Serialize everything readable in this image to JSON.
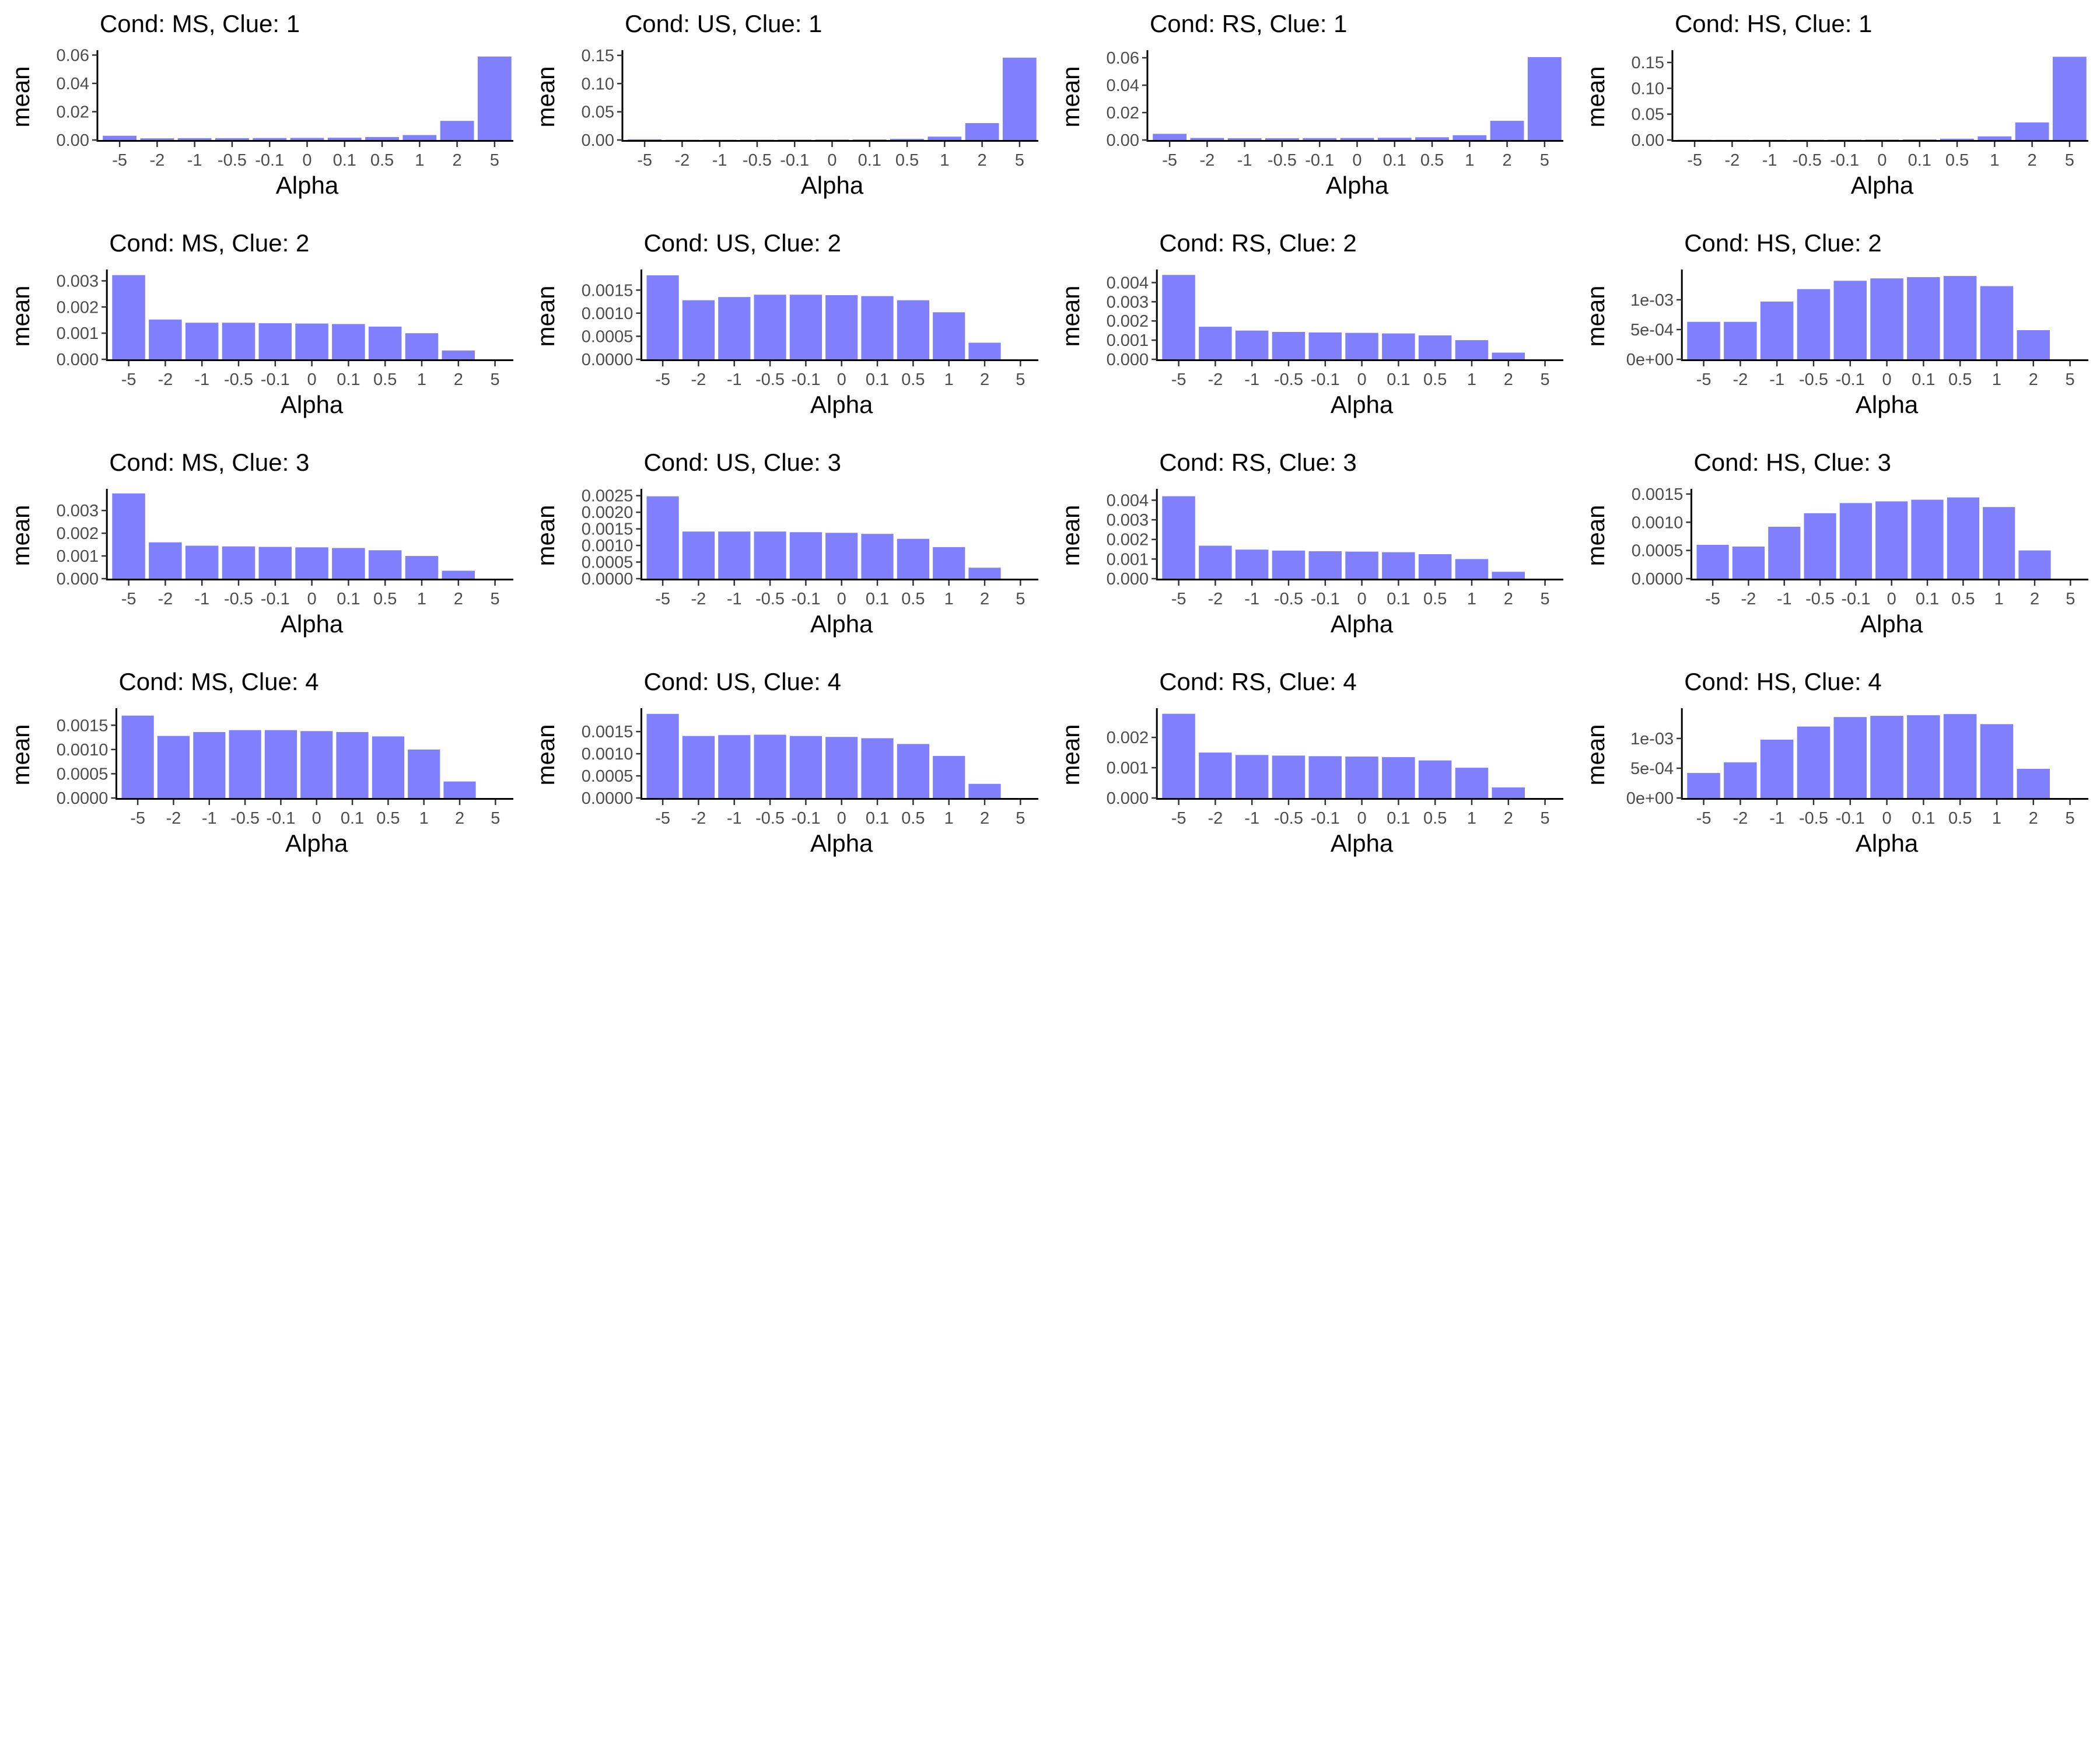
{
  "xlabel": "Alpha",
  "ylabel": "mean",
  "bar_color": "#8080ff",
  "chart_data": [
    {
      "type": "bar",
      "title": "Cond: MS, Clue: 1",
      "categories": [
        "-5",
        "-2",
        "-1",
        "-0.5",
        "-0.1",
        "0",
        "0.1",
        "0.5",
        "1",
        "2",
        "5"
      ],
      "values": [
        0.003,
        0.0012,
        0.0013,
        0.0013,
        0.0014,
        0.0015,
        0.0016,
        0.0021,
        0.0035,
        0.0135,
        0.059
      ],
      "ylim": [
        0,
        0.061
      ],
      "yticks": [
        0,
        0.02,
        0.04,
        0.06
      ],
      "yticklabels": [
        "0.00",
        "0.02",
        "0.04",
        "0.06"
      ]
    },
    {
      "type": "bar",
      "title": "Cond: US, Clue: 1",
      "categories": [
        "-5",
        "-2",
        "-1",
        "-0.5",
        "-0.1",
        "0",
        "0.1",
        "0.5",
        "1",
        "2",
        "5"
      ],
      "values": [
        0.0012,
        0.0004,
        0.0004,
        0.0005,
        0.0006,
        0.0008,
        0.001,
        0.002,
        0.006,
        0.03,
        0.146
      ],
      "ylim": [
        0,
        0.153
      ],
      "yticks": [
        0,
        0.05,
        0.1,
        0.15
      ],
      "yticklabels": [
        "0.00",
        "0.05",
        "0.10",
        "0.15"
      ]
    },
    {
      "type": "bar",
      "title": "Cond: RS, Clue: 1",
      "categories": [
        "-5",
        "-2",
        "-1",
        "-0.5",
        "-0.1",
        "0",
        "0.1",
        "0.5",
        "1",
        "2",
        "5"
      ],
      "values": [
        0.0045,
        0.0015,
        0.0013,
        0.0013,
        0.0014,
        0.0015,
        0.0016,
        0.002,
        0.0035,
        0.014,
        0.0605
      ],
      "ylim": [
        0,
        0.063
      ],
      "yticks": [
        0,
        0.02,
        0.04,
        0.06
      ],
      "yticklabels": [
        "0.00",
        "0.02",
        "0.04",
        "0.06"
      ]
    },
    {
      "type": "bar",
      "title": "Cond: HS, Clue: 1",
      "categories": [
        "-5",
        "-2",
        "-1",
        "-0.5",
        "-0.1",
        "0",
        "0.1",
        "0.5",
        "1",
        "2",
        "5"
      ],
      "values": [
        0.0004,
        0.0003,
        0.0004,
        0.0005,
        0.0006,
        0.0008,
        0.0012,
        0.0025,
        0.007,
        0.034,
        0.161
      ],
      "ylim": [
        0,
        0.167
      ],
      "yticks": [
        0,
        0.05,
        0.1,
        0.15
      ],
      "yticklabels": [
        "0.00",
        "0.05",
        "0.10",
        "0.15"
      ]
    },
    {
      "type": "bar",
      "title": "Cond: MS, Clue: 2",
      "categories": [
        "-5",
        "-2",
        "-1",
        "-0.5",
        "-0.1",
        "0",
        "0.1",
        "0.5",
        "1",
        "2",
        "5"
      ],
      "values": [
        0.00322,
        0.00152,
        0.0014,
        0.0014,
        0.00138,
        0.00137,
        0.00135,
        0.00125,
        0.001,
        0.00034,
        0.0
      ],
      "ylim": [
        0,
        0.0033
      ],
      "yticks": [
        0,
        0.001,
        0.002,
        0.003
      ],
      "yticklabels": [
        "0.000",
        "0.001",
        "0.002",
        "0.003"
      ]
    },
    {
      "type": "bar",
      "title": "Cond: US, Clue: 2",
      "categories": [
        "-5",
        "-2",
        "-1",
        "-0.5",
        "-0.1",
        "0",
        "0.1",
        "0.5",
        "1",
        "2",
        "5"
      ],
      "values": [
        0.00182,
        0.00128,
        0.00135,
        0.0014,
        0.0014,
        0.00139,
        0.00137,
        0.00128,
        0.00102,
        0.00036,
        0.0
      ],
      "ylim": [
        0,
        0.00187
      ],
      "yticks": [
        0,
        0.0005,
        0.001,
        0.0015
      ],
      "yticklabels": [
        "0.0000",
        "0.0005",
        "0.0010",
        "0.0015"
      ]
    },
    {
      "type": "bar",
      "title": "Cond: RS, Clue: 2",
      "categories": [
        "-5",
        "-2",
        "-1",
        "-0.5",
        "-0.1",
        "0",
        "0.1",
        "0.5",
        "1",
        "2",
        "5"
      ],
      "values": [
        0.0044,
        0.0017,
        0.0015,
        0.00143,
        0.0014,
        0.00138,
        0.00135,
        0.00125,
        0.001,
        0.00035,
        0.0
      ],
      "ylim": [
        0,
        0.0045
      ],
      "yticks": [
        0,
        0.001,
        0.002,
        0.003,
        0.004
      ],
      "yticklabels": [
        "0.000",
        "0.001",
        "0.002",
        "0.003",
        "0.004"
      ]
    },
    {
      "type": "bar",
      "title": "Cond: HS, Clue: 2",
      "categories": [
        "-5",
        "-2",
        "-1",
        "-0.5",
        "-0.1",
        "0",
        "0.1",
        "0.5",
        "1",
        "2",
        "5"
      ],
      "values": [
        0.00063,
        0.00063,
        0.00097,
        0.00118,
        0.00132,
        0.00136,
        0.00138,
        0.0014,
        0.00123,
        0.00049,
        0.0
      ],
      "ylim": [
        0,
        0.00145
      ],
      "yticks": [
        0,
        0.0005,
        0.001
      ],
      "yticklabels": [
        "0e+00",
        "5e-04",
        "1e-03"
      ]
    },
    {
      "type": "bar",
      "title": "Cond: MS, Clue: 3",
      "categories": [
        "-5",
        "-2",
        "-1",
        "-0.5",
        "-0.1",
        "0",
        "0.1",
        "0.5",
        "1",
        "2",
        "5"
      ],
      "values": [
        0.00375,
        0.0016,
        0.00145,
        0.00142,
        0.0014,
        0.00138,
        0.00135,
        0.00125,
        0.001,
        0.00035,
        0.0
      ],
      "ylim": [
        0,
        0.0038
      ],
      "yticks": [
        0,
        0.001,
        0.002,
        0.003
      ],
      "yticklabels": [
        "0.000",
        "0.001",
        "0.002",
        "0.003"
      ]
    },
    {
      "type": "bar",
      "title": "Cond: US, Clue: 3",
      "categories": [
        "-5",
        "-2",
        "-1",
        "-0.5",
        "-0.1",
        "0",
        "0.1",
        "0.5",
        "1",
        "2",
        "5"
      ],
      "values": [
        0.00248,
        0.00142,
        0.00142,
        0.00142,
        0.0014,
        0.00138,
        0.00135,
        0.0012,
        0.00095,
        0.00033,
        0.0
      ],
      "ylim": [
        0,
        0.0026
      ],
      "yticks": [
        0,
        0.0005,
        0.001,
        0.0015,
        0.002,
        0.0025
      ],
      "yticklabels": [
        "0.0000",
        "0.0005",
        "0.0010",
        "0.0015",
        "0.0020",
        "0.0025"
      ]
    },
    {
      "type": "bar",
      "title": "Cond: RS, Clue: 3",
      "categories": [
        "-5",
        "-2",
        "-1",
        "-0.5",
        "-0.1",
        "0",
        "0.1",
        "0.5",
        "1",
        "2",
        "5"
      ],
      "values": [
        0.0042,
        0.00168,
        0.00148,
        0.00143,
        0.0014,
        0.00138,
        0.00135,
        0.00125,
        0.001,
        0.00035,
        0.0
      ],
      "ylim": [
        0,
        0.0044
      ],
      "yticks": [
        0,
        0.001,
        0.002,
        0.003,
        0.004
      ],
      "yticklabels": [
        "0.000",
        "0.001",
        "0.002",
        "0.003",
        "0.004"
      ]
    },
    {
      "type": "bar",
      "title": "Cond: HS, Clue: 3",
      "categories": [
        "-5",
        "-2",
        "-1",
        "-0.5",
        "-0.1",
        "0",
        "0.1",
        "0.5",
        "1",
        "2",
        "5"
      ],
      "values": [
        0.0006,
        0.00057,
        0.00092,
        0.00116,
        0.00134,
        0.00137,
        0.0014,
        0.00144,
        0.00127,
        0.0005,
        0.0
      ],
      "ylim": [
        0,
        0.00153
      ],
      "yticks": [
        0,
        0.0005,
        0.001,
        0.0015
      ],
      "yticklabels": [
        "0.0000",
        "0.0005",
        "0.0010",
        "0.0015"
      ]
    },
    {
      "type": "bar",
      "title": "Cond: MS, Clue: 4",
      "categories": [
        "-5",
        "-2",
        "-1",
        "-0.5",
        "-0.1",
        "0",
        "0.1",
        "0.5",
        "1",
        "2",
        "5"
      ],
      "values": [
        0.0017,
        0.00128,
        0.00136,
        0.0014,
        0.0014,
        0.00138,
        0.00136,
        0.00127,
        0.001,
        0.00034,
        0.0
      ],
      "ylim": [
        0,
        0.00178
      ],
      "yticks": [
        0,
        0.0005,
        0.001,
        0.0015
      ],
      "yticklabels": [
        "0.0000",
        "0.0005",
        "0.0010",
        "0.0015"
      ]
    },
    {
      "type": "bar",
      "title": "Cond: US, Clue: 4",
      "categories": [
        "-5",
        "-2",
        "-1",
        "-0.5",
        "-0.1",
        "0",
        "0.1",
        "0.5",
        "1",
        "2",
        "5"
      ],
      "values": [
        0.0019,
        0.0014,
        0.00142,
        0.00143,
        0.0014,
        0.00138,
        0.00135,
        0.00122,
        0.00095,
        0.00032,
        0.0
      ],
      "ylim": [
        0,
        0.00195
      ],
      "yticks": [
        0,
        0.0005,
        0.001,
        0.0015
      ],
      "yticklabels": [
        "0.0000",
        "0.0005",
        "0.0010",
        "0.0015"
      ]
    },
    {
      "type": "bar",
      "title": "Cond: RS, Clue: 4",
      "categories": [
        "-5",
        "-2",
        "-1",
        "-0.5",
        "-0.1",
        "0",
        "0.1",
        "0.5",
        "1",
        "2",
        "5"
      ],
      "values": [
        0.00278,
        0.0015,
        0.00142,
        0.0014,
        0.00138,
        0.00137,
        0.00135,
        0.00124,
        0.001,
        0.00035,
        0.0
      ],
      "ylim": [
        0,
        0.00285
      ],
      "yticks": [
        0,
        0.001,
        0.002
      ],
      "yticklabels": [
        "0.000",
        "0.001",
        "0.002"
      ]
    },
    {
      "type": "bar",
      "title": "Cond: HS, Clue: 4",
      "categories": [
        "-5",
        "-2",
        "-1",
        "-0.5",
        "-0.1",
        "0",
        "0.1",
        "0.5",
        "1",
        "2",
        "5"
      ],
      "values": [
        0.00042,
        0.0006,
        0.00098,
        0.0012,
        0.00136,
        0.00138,
        0.00139,
        0.00141,
        0.00124,
        0.00049,
        0.0
      ],
      "ylim": [
        0,
        0.00145
      ],
      "yticks": [
        0,
        0.0005,
        0.001
      ],
      "yticklabels": [
        "0e+00",
        "5e-04",
        "1e-03"
      ]
    }
  ]
}
